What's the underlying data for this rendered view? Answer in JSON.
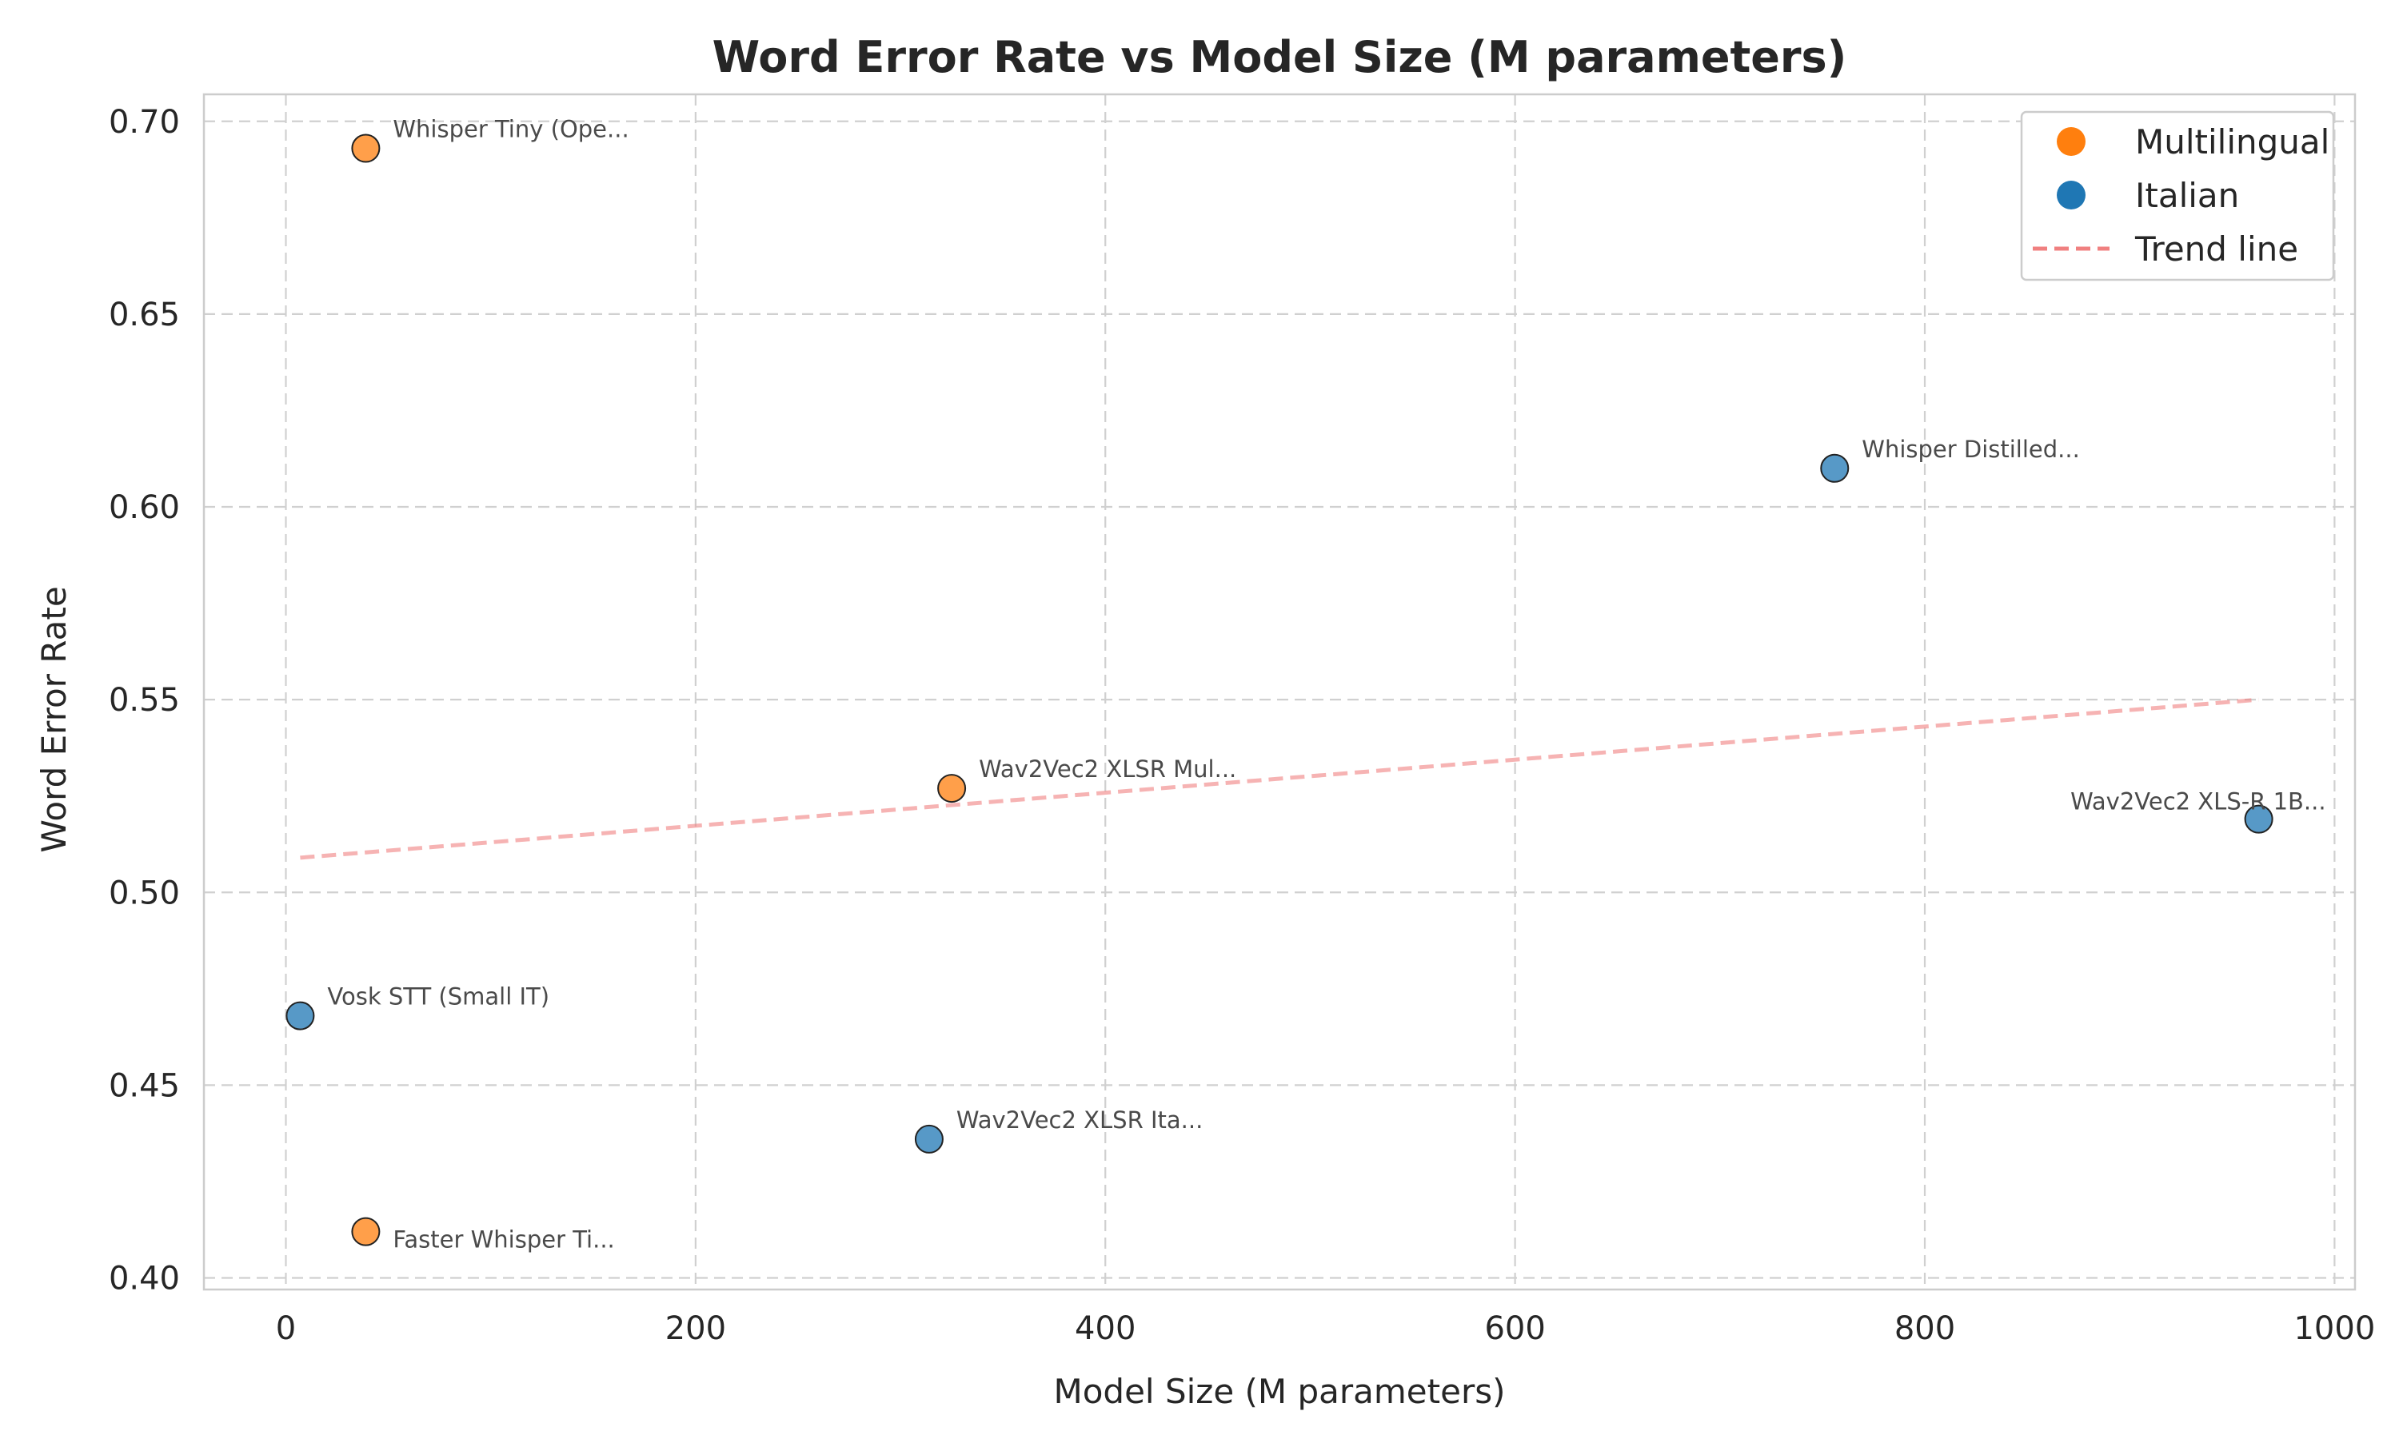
{
  "chart_data": {
    "type": "scatter",
    "title": "Word Error Rate vs Model Size (M parameters)",
    "xlabel": "Model Size (M parameters)",
    "ylabel": "Word Error Rate",
    "xlim": [
      -40,
      1010
    ],
    "ylim": [
      0.397,
      0.707
    ],
    "xticks": [
      0,
      200,
      400,
      600,
      800,
      1000
    ],
    "yticks": [
      0.4,
      0.45,
      0.5,
      0.55,
      0.6,
      0.65,
      0.7
    ],
    "xtick_labels": [
      "0",
      "200",
      "400",
      "600",
      "800",
      "1000"
    ],
    "ytick_labels": [
      "0.40",
      "0.45",
      "0.50",
      "0.55",
      "0.60",
      "0.65",
      "0.70"
    ],
    "grid": true,
    "legend_position": "top-right",
    "series": [
      {
        "name": "Multilingual",
        "color": "#ff7f0e",
        "points": [
          {
            "label": "Whisper Tiny (Ope...",
            "x": 39,
            "y": 0.693,
            "label_side": "right-above"
          },
          {
            "label": "Wav2Vec2 XLSR Mul...",
            "x": 325,
            "y": 0.527,
            "label_side": "right-above"
          },
          {
            "label": "Faster Whisper Ti...",
            "x": 39,
            "y": 0.412,
            "label_side": "right-below"
          }
        ]
      },
      {
        "name": "Italian",
        "color": "#1f77b4",
        "points": [
          {
            "label": "Whisper Distilled...",
            "x": 756,
            "y": 0.61,
            "label_side": "right-above"
          },
          {
            "label": "Wav2Vec2 XLS-R 1B...",
            "x": 963,
            "y": 0.519,
            "label_side": "left-above"
          },
          {
            "label": "Vosk STT (Small IT)",
            "x": 7,
            "y": 0.468,
            "label_side": "right-above"
          },
          {
            "label": "Wav2Vec2 XLSR Ita...",
            "x": 314,
            "y": 0.436,
            "label_side": "right-above"
          }
        ]
      }
    ],
    "trend_line": {
      "name": "Trend line",
      "color": "#f08080",
      "x": [
        7,
        963
      ],
      "y": [
        0.509,
        0.55
      ]
    }
  }
}
